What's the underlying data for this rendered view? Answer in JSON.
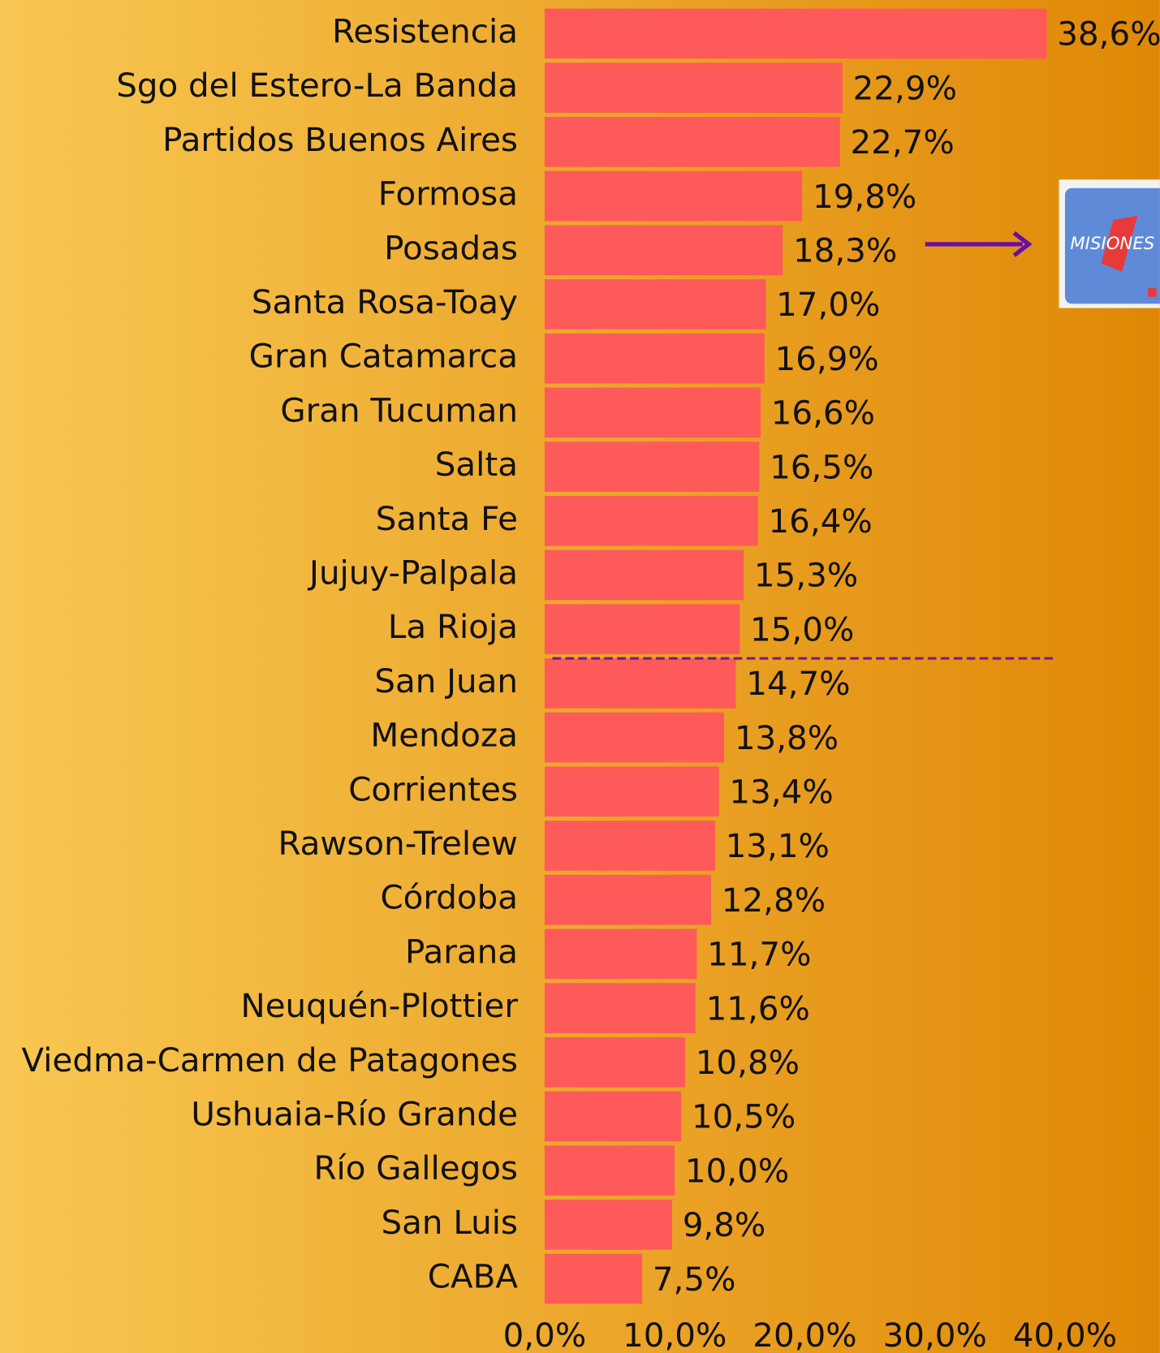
{
  "chart_data": {
    "type": "hbar",
    "categories": [
      "Resistencia",
      "Sgo del Estero-La Banda",
      "Partidos Buenos Aires",
      "Formosa",
      "Posadas",
      "Santa Rosa-Toay",
      "Gran Catamarca",
      "Gran Tucuman",
      "Salta",
      "Santa Fe",
      "Jujuy-Palpala",
      "La Rioja",
      "San Juan",
      "Mendoza",
      "Corrientes",
      "Rawson-Trelew",
      "Córdoba",
      "Parana",
      "Neuquén-Plottier",
      "Viedma-Carmen de Patagones",
      "Ushuaia-Río Grande",
      "Río Gallegos",
      "San Luis",
      "CABA"
    ],
    "values": [
      38.6,
      22.9,
      22.7,
      19.8,
      18.3,
      17.0,
      16.9,
      16.6,
      16.5,
      16.4,
      15.3,
      15.0,
      14.7,
      13.8,
      13.4,
      13.1,
      12.8,
      11.7,
      11.6,
      10.8,
      10.5,
      10.0,
      9.8,
      7.5
    ],
    "value_labels": [
      "38,6%",
      "22,9%",
      "22,7%",
      "19,8%",
      "18,3%",
      "17,0%",
      "16,9%",
      "16,6%",
      "16,5%",
      "16,4%",
      "15,3%",
      "15,0%",
      "14,7%",
      "13,8%",
      "13,4%",
      "13,1%",
      "12,8%",
      "11,7%",
      "11,6%",
      "10,8%",
      "10,5%",
      "10,0%",
      "9,8%",
      "7,5%"
    ],
    "color": "#ff5a5a",
    "xlim": [
      0,
      40
    ],
    "xticks": [
      {
        "value": 0,
        "label": "0,0%"
      },
      {
        "value": 10,
        "label": "10,0%"
      },
      {
        "value": 20,
        "label": "20,0%"
      },
      {
        "value": 30,
        "label": "30,0%"
      },
      {
        "value": 40,
        "label": "40,0%"
      }
    ],
    "grid": false
  },
  "logo_text": "MISIONES"
}
